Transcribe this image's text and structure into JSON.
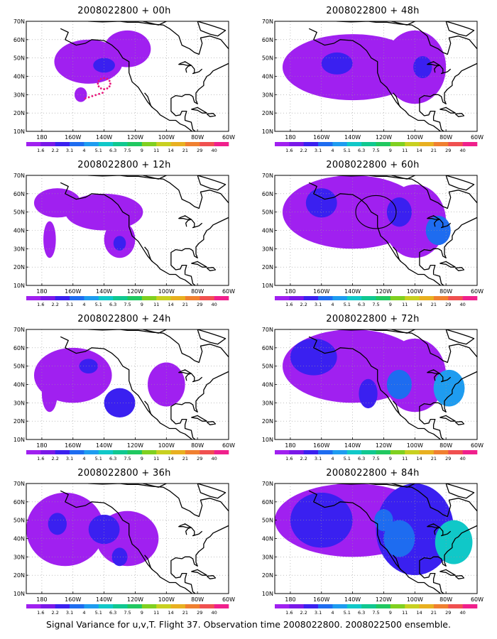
{
  "panels": [
    {
      "title": "2008022800 + 00h",
      "level": 0,
      "blobs": [
        [
          -150,
          48,
          22,
          12,
          1
        ],
        [
          -125,
          55,
          15,
          10,
          1
        ],
        [
          -140,
          46,
          7,
          4,
          2
        ],
        [
          -155,
          30,
          4,
          4,
          1
        ]
      ],
      "marker": "dots"
    },
    {
      "title": "2008022800 + 12h",
      "level": 1,
      "blobs": [
        [
          -170,
          55,
          15,
          8,
          1
        ],
        [
          -140,
          50,
          25,
          10,
          1
        ],
        [
          -130,
          35,
          10,
          10,
          1
        ],
        [
          -175,
          35,
          4,
          10,
          1
        ],
        [
          -130,
          33,
          4,
          4,
          2
        ]
      ]
    },
    {
      "title": "2008022800 + 24h",
      "level": 2,
      "blobs": [
        [
          -160,
          45,
          25,
          15,
          1
        ],
        [
          -130,
          30,
          10,
          8,
          2
        ],
        [
          -100,
          40,
          12,
          12,
          1
        ],
        [
          -175,
          35,
          5,
          10,
          1
        ],
        [
          -150,
          50,
          6,
          4,
          2
        ]
      ]
    },
    {
      "title": "2008022800 + 36h",
      "level": 3,
      "blobs": [
        [
          -165,
          45,
          25,
          20,
          1
        ],
        [
          -125,
          40,
          20,
          15,
          1
        ],
        [
          -140,
          45,
          10,
          8,
          2
        ],
        [
          -170,
          48,
          6,
          6,
          2
        ],
        [
          -130,
          30,
          5,
          5,
          2
        ]
      ]
    },
    {
      "title": "2008022800 + 48h",
      "level": 4,
      "blobs": [
        [
          -140,
          45,
          45,
          18,
          1
        ],
        [
          -100,
          45,
          20,
          20,
          1
        ],
        [
          -150,
          47,
          10,
          6,
          2
        ],
        [
          -95,
          45,
          6,
          6,
          2
        ]
      ]
    },
    {
      "title": "2008022800 + 60h",
      "level": 5,
      "blobs": [
        [
          -140,
          50,
          45,
          20,
          1
        ],
        [
          -100,
          45,
          20,
          20,
          1
        ],
        [
          -160,
          55,
          10,
          8,
          2
        ],
        [
          -85,
          40,
          8,
          8,
          3
        ],
        [
          -110,
          50,
          8,
          8,
          2
        ]
      ],
      "marker": "circle"
    },
    {
      "title": "2008022800 + 72h",
      "level": 6,
      "blobs": [
        [
          -140,
          50,
          45,
          20,
          1
        ],
        [
          -100,
          45,
          20,
          20,
          1
        ],
        [
          -165,
          55,
          15,
          10,
          2
        ],
        [
          -110,
          40,
          8,
          8,
          3
        ],
        [
          -78,
          38,
          10,
          10,
          4
        ],
        [
          -130,
          35,
          6,
          8,
          2
        ]
      ]
    },
    {
      "title": "2008022800 + 84h",
      "level": 7,
      "blobs": [
        [
          -140,
          50,
          50,
          20,
          1
        ],
        [
          -100,
          45,
          25,
          25,
          2
        ],
        [
          -160,
          50,
          20,
          15,
          2
        ],
        [
          -110,
          40,
          10,
          10,
          3
        ],
        [
          -75,
          38,
          12,
          12,
          5
        ],
        [
          -120,
          50,
          6,
          6,
          3
        ]
      ]
    }
  ],
  "map": {
    "lon_range": [
      -190,
      -60
    ],
    "lat_range": [
      10,
      70
    ],
    "lat_ticks": [
      "10N",
      "20N",
      "30N",
      "40N",
      "50N",
      "60N",
      "70N"
    ],
    "lon_ticks": [
      "180",
      "160W",
      "140W",
      "120W",
      "100W",
      "80W",
      "60W"
    ],
    "grid": true
  },
  "colorbar": {
    "labels": [
      "1.6",
      "2.2",
      "3.1",
      "4",
      "5.1",
      "6.3",
      "7.5",
      "9",
      "11",
      "14",
      "21",
      "29",
      "40"
    ],
    "colors": [
      "#a020f0",
      "#7a18e8",
      "#3a20f0",
      "#1e6cf0",
      "#1e9cf0",
      "#10c8c8",
      "#10c890",
      "#20c860",
      "#80d020",
      "#c8d020",
      "#e8b020",
      "#f08030",
      "#f05050",
      "#f0208c"
    ]
  },
  "footer": "Signal Variance for u,v,T. Flight 37. Observation time 2008022800. 2008022500 ensemble."
}
